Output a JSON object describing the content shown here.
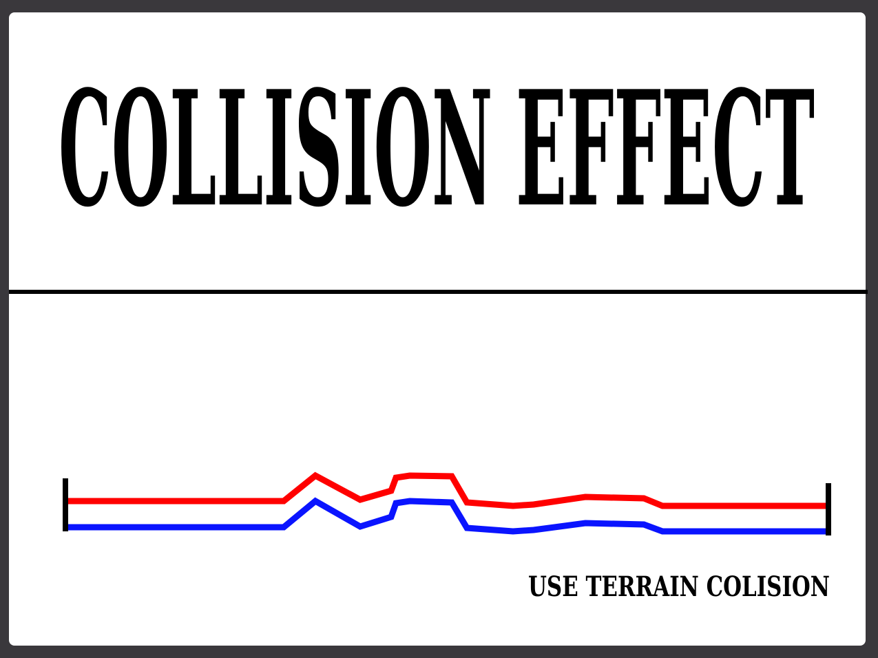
{
  "title": "COLLISION EFFECT",
  "caption": "USE TERRAIN COLISION"
}
